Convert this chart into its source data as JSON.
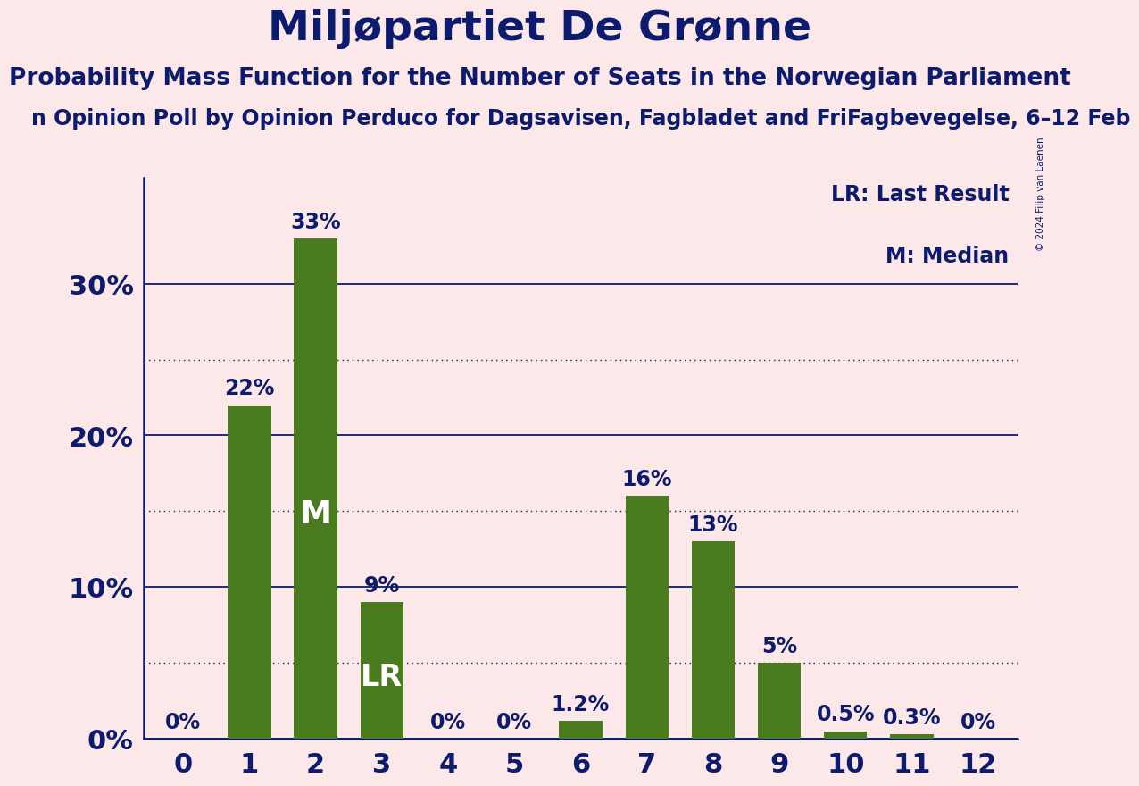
{
  "title": "Miljøpartiet De Grønne",
  "subtitle": "Probability Mass Function for the Number of Seats in the Norwegian Parliament",
  "source_line": "n Opinion Poll by Opinion Perduco for Dagsavisen, Fagbladet and FriFagbevegelse, 6–12 Feb",
  "copyright": "© 2024 Filip van Laenen",
  "categories": [
    0,
    1,
    2,
    3,
    4,
    5,
    6,
    7,
    8,
    9,
    10,
    11,
    12
  ],
  "values": [
    0.0,
    22.0,
    33.0,
    9.0,
    0.0,
    0.0,
    1.2,
    16.0,
    13.0,
    5.0,
    0.5,
    0.3,
    0.0
  ],
  "bar_color": "#4a7c1f",
  "background_color": "#fce8e8",
  "text_color": "#0d1b6e",
  "white_color": "#ffffff",
  "median_bar": 2,
  "lr_bar": 3,
  "label_texts": [
    "0%",
    "22%",
    "33%",
    "9%",
    "0%",
    "0%",
    "1.2%",
    "16%",
    "13%",
    "5%",
    "0.5%",
    "0.3%",
    "0%"
  ],
  "yticks_solid": [
    0,
    10,
    20,
    30
  ],
  "yticks_dotted": [
    5,
    15,
    25
  ],
  "ylim": [
    0,
    37
  ],
  "title_fontsize": 34,
  "subtitle_fontsize": 19,
  "source_fontsize": 17,
  "bar_label_fontsize": 17,
  "ytick_fontsize": 22,
  "xtick_fontsize": 22,
  "legend_fontsize": 17,
  "inside_label_fontsize": 26,
  "lr_label_fontsize": 24
}
